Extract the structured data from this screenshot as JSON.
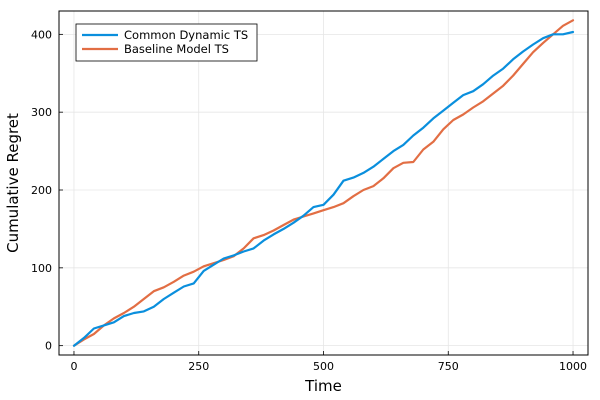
{
  "chart_data": {
    "type": "line",
    "xlabel": "Time",
    "ylabel": "Cumulative Regret",
    "xlim": [
      -30,
      1030
    ],
    "ylim": [
      -12,
      430
    ],
    "xticks": [
      0,
      250,
      500,
      750,
      1000
    ],
    "yticks": [
      0,
      100,
      200,
      300,
      400
    ],
    "xtick_labels": [
      "0",
      "250",
      "500",
      "750",
      "1000"
    ],
    "ytick_labels": [
      "0",
      "100",
      "200",
      "300",
      "400"
    ],
    "grid": true,
    "legend_position": "top-left",
    "series": [
      {
        "name": "Common Dynamic TS",
        "color": "#0a8fdd",
        "x": [
          0,
          20,
          40,
          60,
          80,
          100,
          120,
          140,
          160,
          180,
          200,
          220,
          240,
          260,
          280,
          300,
          320,
          340,
          360,
          380,
          400,
          420,
          440,
          460,
          480,
          500,
          520,
          540,
          560,
          580,
          600,
          620,
          640,
          660,
          680,
          700,
          720,
          740,
          760,
          780,
          800,
          820,
          840,
          860,
          880,
          900,
          920,
          940,
          960,
          980,
          1000
        ],
        "y": [
          0,
          10,
          22,
          26,
          30,
          38,
          42,
          44,
          50,
          60,
          68,
          76,
          80,
          96,
          104,
          112,
          116,
          121,
          125,
          135,
          143,
          150,
          158,
          167,
          178,
          181,
          194,
          212,
          216,
          222,
          230,
          240,
          250,
          258,
          270,
          280,
          292,
          302,
          312,
          322,
          327,
          336,
          347,
          356,
          368,
          378,
          387,
          395,
          400,
          400,
          403
        ]
      },
      {
        "name": "Baseline Model TS",
        "color": "#e26e44",
        "x": [
          0,
          20,
          40,
          60,
          80,
          100,
          120,
          140,
          160,
          180,
          200,
          220,
          240,
          260,
          280,
          300,
          320,
          340,
          360,
          380,
          400,
          420,
          440,
          460,
          480,
          500,
          520,
          540,
          560,
          580,
          600,
          620,
          640,
          660,
          680,
          700,
          720,
          740,
          760,
          780,
          800,
          820,
          840,
          860,
          880,
          900,
          920,
          940,
          960,
          980,
          1000
        ],
        "y": [
          0,
          8,
          15,
          26,
          35,
          42,
          50,
          60,
          70,
          75,
          82,
          90,
          95,
          102,
          106,
          110,
          115,
          125,
          138,
          142,
          148,
          155,
          162,
          166,
          170,
          174,
          178,
          183,
          192,
          200,
          205,
          215,
          228,
          235,
          236,
          252,
          262,
          278,
          290,
          297,
          306,
          314,
          324,
          334,
          347,
          362,
          377,
          389,
          400,
          411,
          418
        ]
      }
    ]
  }
}
